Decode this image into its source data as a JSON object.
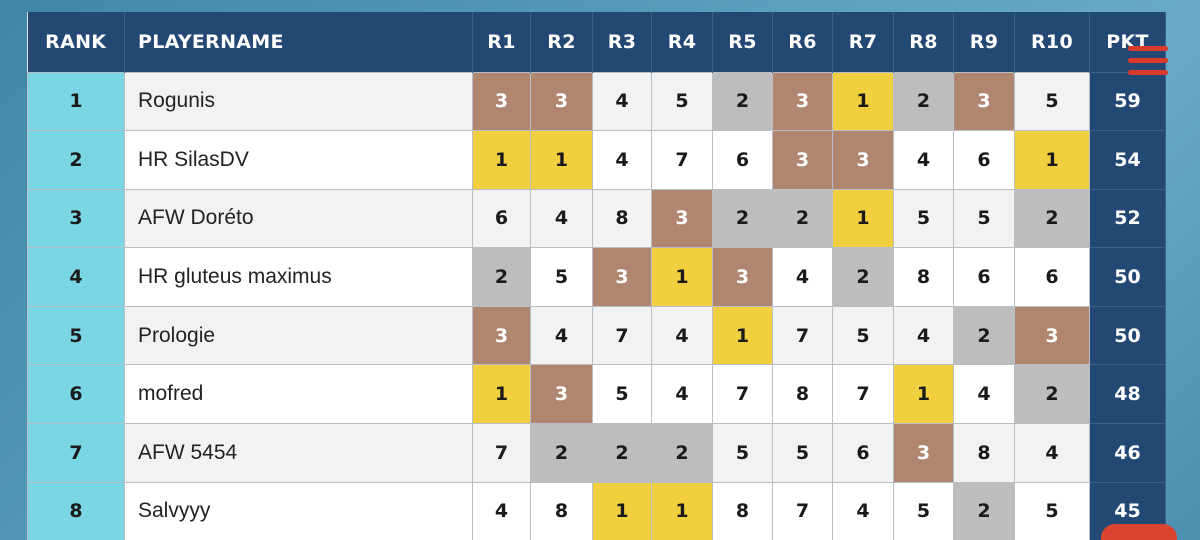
{
  "colors": {
    "header_bg": "#234874",
    "rank_bg": "#79d6e2",
    "gold": "#f2cf3e",
    "silver": "#bdbdbd",
    "bronze": "#b08670",
    "menu_accent": "#d83a2e"
  },
  "headers": {
    "rank": "RANK",
    "player": "PLAYERNAME",
    "rounds": [
      "R1",
      "R2",
      "R3",
      "R4",
      "R5",
      "R6",
      "R7",
      "R8",
      "R9",
      "R10"
    ],
    "points": "PKT"
  },
  "rows": [
    {
      "rank": "1",
      "name": "Rogunis",
      "rounds": [
        "3",
        "3",
        "4",
        "5",
        "2",
        "3",
        "1",
        "2",
        "3",
        "5"
      ],
      "points": "59"
    },
    {
      "rank": "2",
      "name": "HR SilasDV",
      "rounds": [
        "1",
        "1",
        "4",
        "7",
        "6",
        "3",
        "3",
        "4",
        "6",
        "1"
      ],
      "points": "54"
    },
    {
      "rank": "3",
      "name": "AFW Doréto",
      "rounds": [
        "6",
        "4",
        "8",
        "3",
        "2",
        "2",
        "1",
        "5",
        "5",
        "2"
      ],
      "points": "52"
    },
    {
      "rank": "4",
      "name": "HR gluteus maximus",
      "rounds": [
        "2",
        "5",
        "3",
        "1",
        "3",
        "4",
        "2",
        "8",
        "6",
        "6"
      ],
      "points": "50"
    },
    {
      "rank": "5",
      "name": "Prologie",
      "rounds": [
        "3",
        "4",
        "7",
        "4",
        "1",
        "7",
        "5",
        "4",
        "2",
        "3"
      ],
      "points": "50"
    },
    {
      "rank": "6",
      "name": "mofred",
      "rounds": [
        "1",
        "3",
        "5",
        "4",
        "7",
        "8",
        "7",
        "1",
        "4",
        "2"
      ],
      "points": "48"
    },
    {
      "rank": "7",
      "name": "AFW 5454",
      "rounds": [
        "7",
        "2",
        "2",
        "2",
        "5",
        "5",
        "6",
        "3",
        "8",
        "4"
      ],
      "points": "46"
    },
    {
      "rank": "8",
      "name": "Salvyyy",
      "rounds": [
        "4",
        "8",
        "1",
        "1",
        "8",
        "7",
        "4",
        "5",
        "2",
        "5"
      ],
      "points": "45"
    }
  ],
  "icons": {
    "menu": "hamburger-menu-icon",
    "fab": "action-button"
  }
}
